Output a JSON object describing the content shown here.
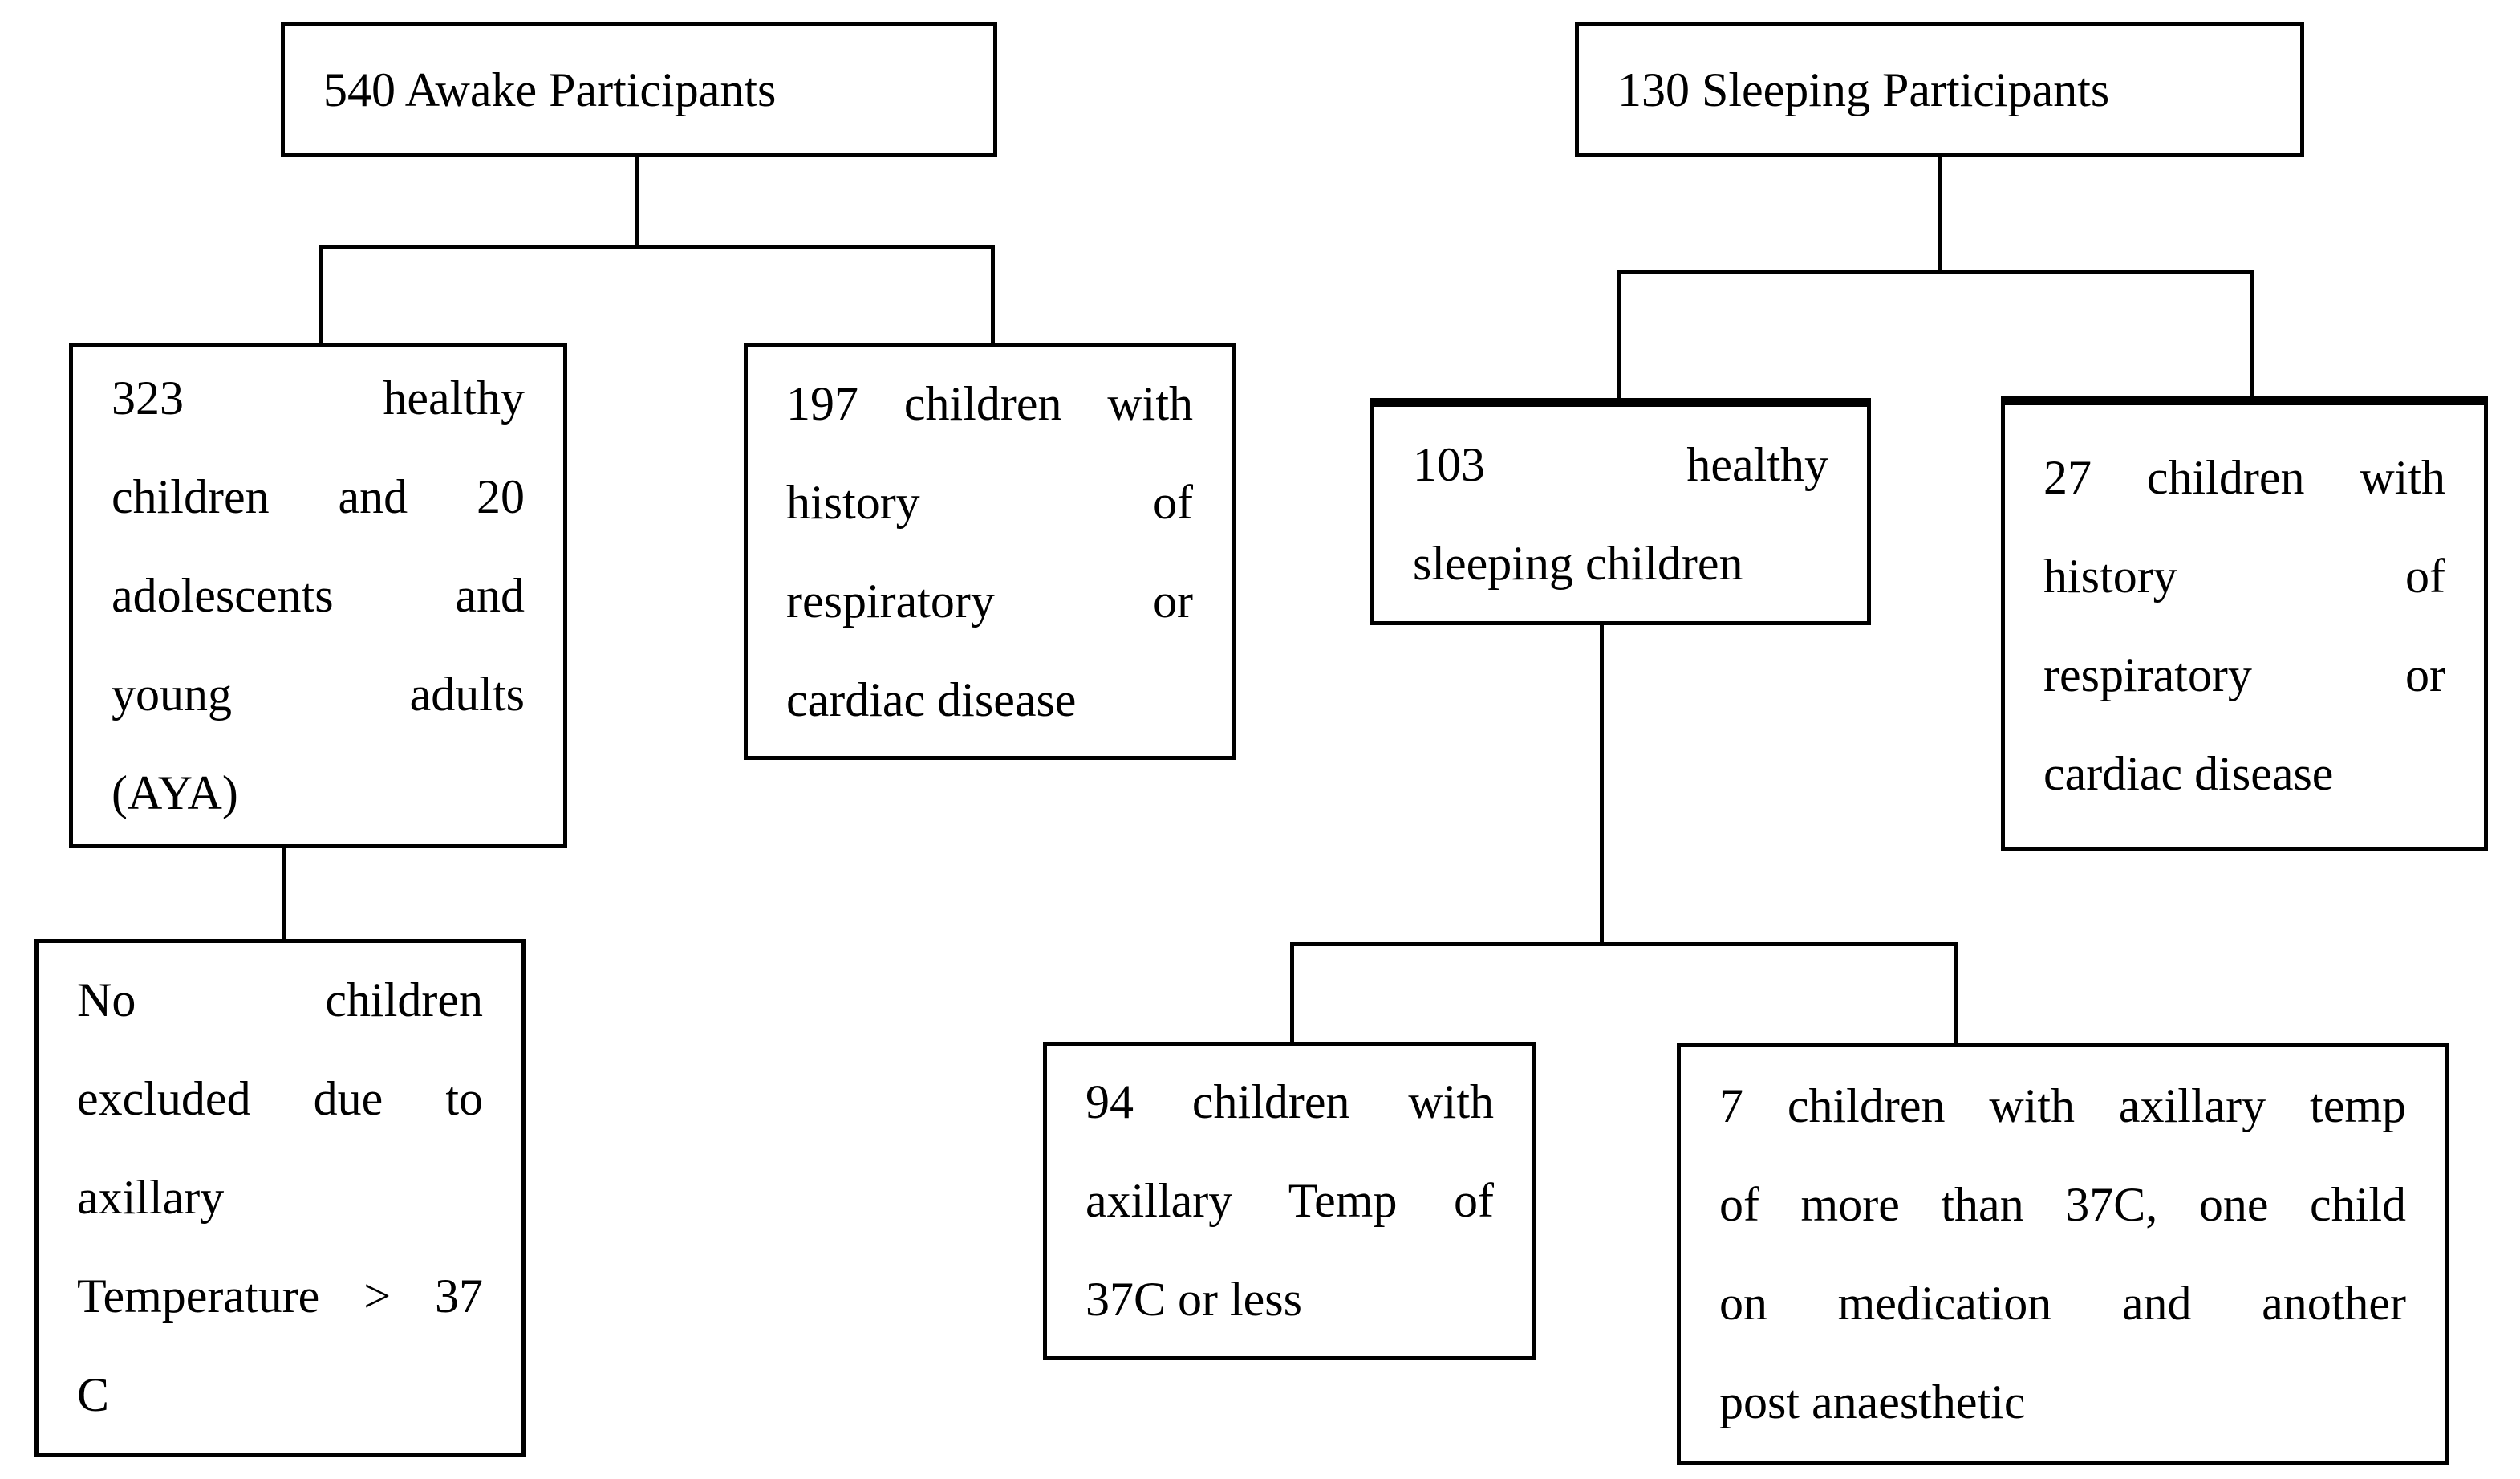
{
  "figure": {
    "ink": "#000000",
    "paper": "#ffffff",
    "boxes": {
      "awake_root": {
        "lines": [
          "540 Awake Participants"
        ]
      },
      "awake_healthy": {
        "lines": [
          "323 healthy",
          "children and 20",
          "adolescents and",
          "young adults",
          "(AYA)"
        ]
      },
      "awake_cardiac": {
        "lines": [
          "197 children with",
          "history of",
          "respiratory or",
          "cardiac disease"
        ]
      },
      "awake_excluded": {
        "lines": [
          "No children",
          "excluded due to",
          "axillary",
          "Temperature > 37",
          "C"
        ]
      },
      "sleeping_root": {
        "lines": [
          "130 Sleeping Participants"
        ]
      },
      "sleeping_healthy": {
        "lines": [
          "103 healthy",
          "sleeping children"
        ]
      },
      "sleeping_cardiac": {
        "lines": [
          "27 children with",
          "history of",
          "respiratory or",
          "cardiac disease"
        ]
      },
      "sleeping_normal_temp": {
        "lines": [
          "94 children with",
          "axillary Temp of",
          "37C or less"
        ]
      },
      "sleeping_high_temp": {
        "lines": [
          "7 children with axillary temp",
          "of more than 37C, one child",
          "on medication and another",
          "post anaesthetic"
        ]
      }
    }
  }
}
